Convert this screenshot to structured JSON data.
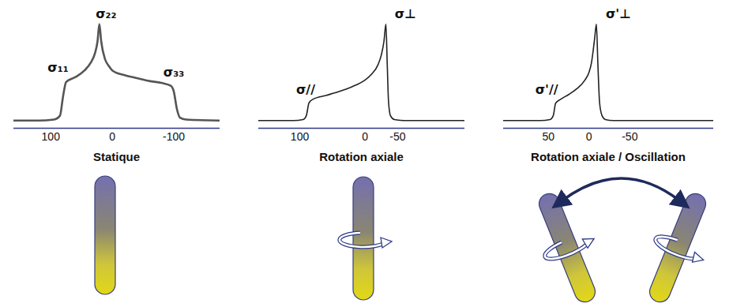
{
  "chart_data": [
    {
      "type": "line",
      "title": "Statique",
      "color": "#555555",
      "tick_labels": "x",
      "xlim": [
        160,
        -175
      ],
      "xticks": [
        100,
        0,
        -100
      ],
      "ylim": [
        -8,
        118
      ],
      "x": [
        160,
        120,
        95,
        85,
        80,
        75,
        60,
        45,
        35,
        28,
        24,
        21,
        18,
        12,
        5,
        0,
        -20,
        -40,
        -60,
        -80,
        -95,
        -100,
        -105,
        -110,
        -120,
        -175
      ],
      "values": [
        0,
        0,
        1,
        5,
        25,
        40,
        45,
        52,
        60,
        70,
        82,
        100,
        82,
        64,
        56,
        52,
        47,
        44,
        41,
        39,
        36,
        30,
        12,
        3,
        1,
        0
      ],
      "annotations": [
        {
          "text": "σ₁₁",
          "x": 88,
          "y": 55
        },
        {
          "text": "σ₂₂",
          "x": 10,
          "y": 110
        },
        {
          "text": "σ₃₃",
          "x": -100,
          "y": 50
        }
      ]
    },
    {
      "type": "line",
      "title": "Rotation axiale",
      "color": "#222222",
      "tick_labels": "x",
      "xlim": [
        163,
        -153
      ],
      "xticks": [
        100,
        0,
        -50
      ],
      "ylim": [
        -8,
        118
      ],
      "x": [
        163,
        110,
        95,
        90,
        86,
        80,
        60,
        40,
        20,
        0,
        -10,
        -20,
        -25,
        -29,
        -32,
        -34,
        -36,
        -39,
        -45,
        -60,
        -153
      ],
      "values": [
        0,
        0,
        1,
        5,
        18,
        22,
        26,
        30,
        35,
        42,
        48,
        58,
        68,
        82,
        100,
        60,
        20,
        5,
        1,
        0,
        0
      ],
      "annotations": [
        {
          "text": "σ//",
          "x": 91,
          "y": 32
        },
        {
          "text": "σ⊥",
          "x": -62,
          "y": 110
        }
      ]
    },
    {
      "type": "line",
      "title": "Rotation axiale / Oscillation",
      "color": "#222222",
      "tick_labels": "x",
      "xlim": [
        105,
        -153
      ],
      "xticks": [
        50,
        0,
        -50
      ],
      "ylim": [
        -8,
        118
      ],
      "x": [
        105,
        60,
        48,
        44,
        41,
        35,
        25,
        15,
        5,
        0,
        -3,
        -5,
        -7,
        -9,
        -11,
        -13,
        -16,
        -20,
        -30,
        -153
      ],
      "values": [
        0,
        0,
        1,
        5,
        18,
        22,
        27,
        33,
        42,
        50,
        60,
        72,
        86,
        100,
        55,
        18,
        5,
        1,
        0,
        0
      ],
      "annotations": [
        {
          "text": "σ'//",
          "x": 52,
          "y": 32
        },
        {
          "text": "σ'⊥",
          "x": -36,
          "y": 110
        }
      ]
    }
  ]
}
